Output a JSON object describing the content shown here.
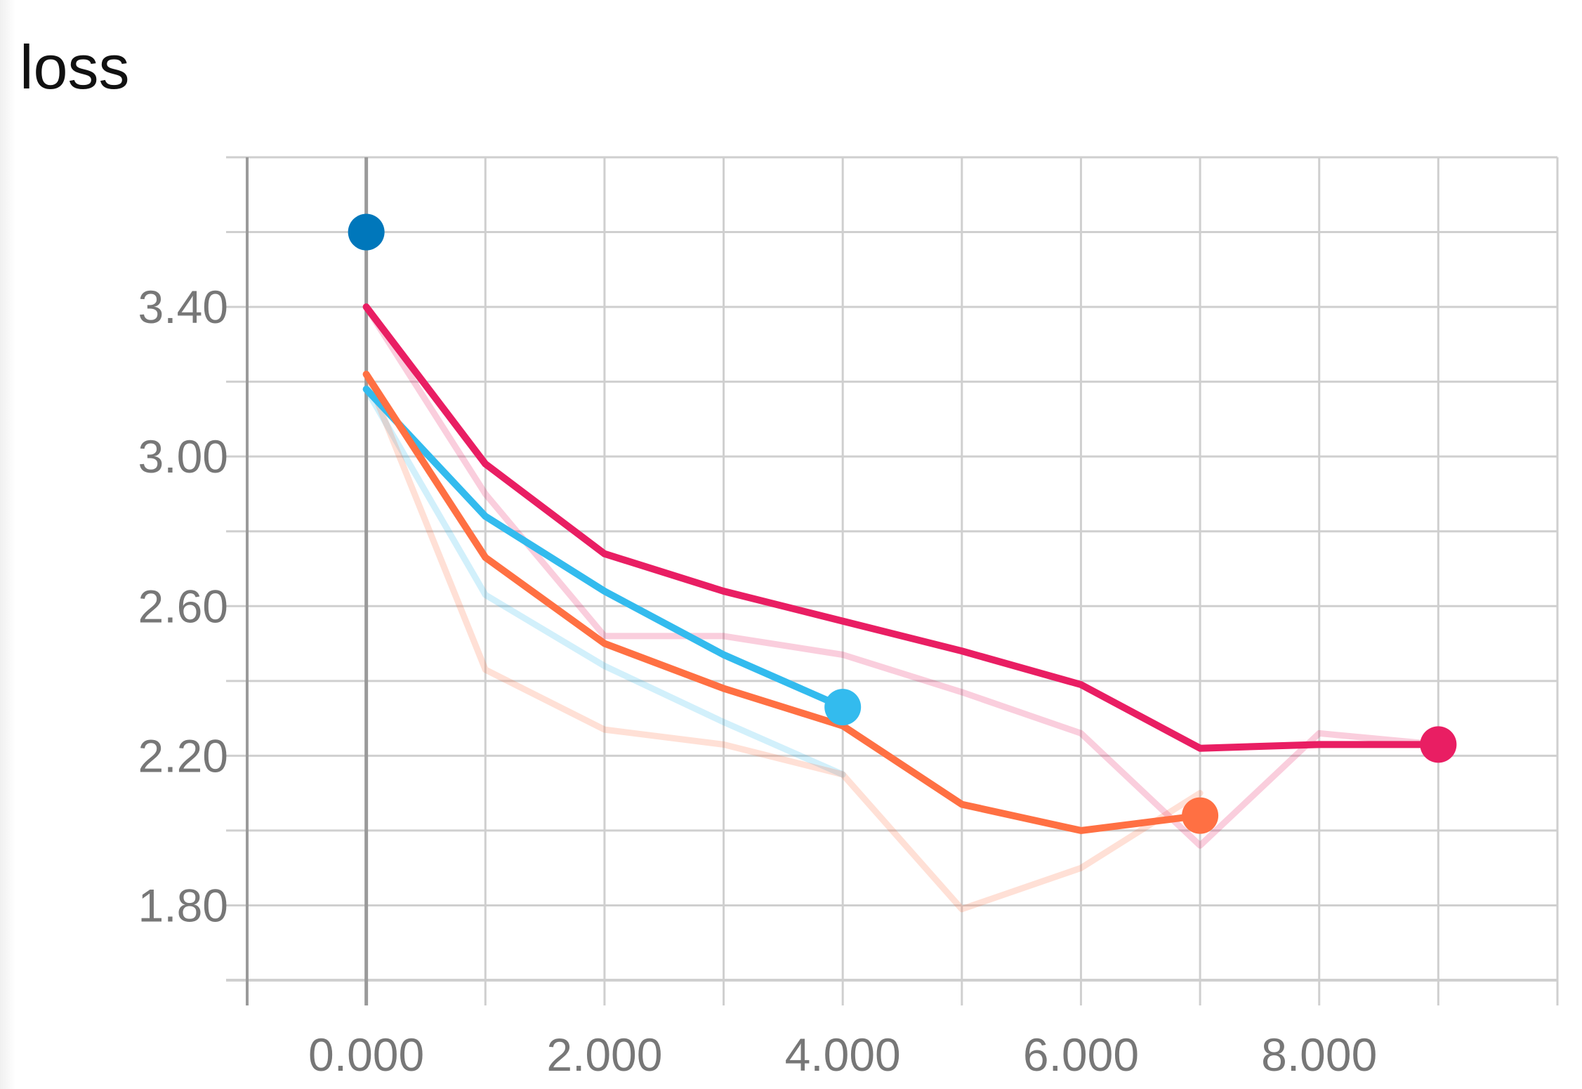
{
  "chart_data": {
    "type": "line",
    "title": "loss",
    "xlabel": "",
    "ylabel": "",
    "xlim": [
      -1,
      10
    ],
    "ylim": [
      1.6,
      3.8
    ],
    "x_ticks": [
      0,
      2,
      4,
      6,
      8
    ],
    "x_tick_labels": [
      "0.000",
      "2.000",
      "4.000",
      "6.000",
      "8.000"
    ],
    "y_ticks": [
      1.8,
      2.2,
      2.6,
      3.0,
      3.4
    ],
    "y_tick_labels": [
      "1.80",
      "2.20",
      "2.60",
      "3.00",
      "3.40"
    ],
    "grid": true,
    "legend": "none",
    "series": [
      {
        "color": "#0077bb",
        "smoothed": [
          3.6
        ],
        "raw": [
          3.6
        ],
        "x": [
          0
        ]
      },
      {
        "color": "#33bbee",
        "x": [
          0,
          1,
          2,
          3,
          4
        ],
        "smoothed": [
          3.18,
          2.84,
          2.64,
          2.47,
          2.33
        ],
        "raw": [
          3.18,
          2.63,
          2.44,
          2.29,
          2.15
        ]
      },
      {
        "color": "#ff7043",
        "x": [
          0,
          1,
          2,
          3,
          4,
          5,
          6,
          7
        ],
        "smoothed": [
          3.22,
          2.73,
          2.5,
          2.38,
          2.28,
          2.07,
          2.0,
          2.04
        ],
        "raw": [
          3.22,
          2.43,
          2.27,
          2.23,
          2.15,
          1.79,
          1.9,
          2.1
        ]
      },
      {
        "color": "#e91e63",
        "x": [
          0,
          1,
          2,
          3,
          4,
          5,
          6,
          7,
          8,
          9
        ],
        "smoothed": [
          3.4,
          2.98,
          2.74,
          2.64,
          2.56,
          2.48,
          2.39,
          2.22,
          2.23,
          2.23
        ],
        "raw": [
          3.4,
          2.9,
          2.52,
          2.52,
          2.47,
          2.37,
          2.26,
          1.96,
          2.26,
          2.23
        ]
      }
    ]
  }
}
